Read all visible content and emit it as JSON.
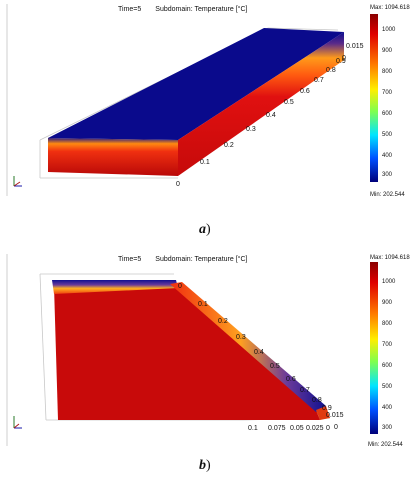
{
  "panels": [
    {
      "time_label": "Time=5",
      "subdomain_label": "Subdomain: Temperature [°C]",
      "legend": {
        "max_label": "Max: 1094.618",
        "min_label": "Min: 202.544",
        "ticks": [
          "1000",
          "900",
          "800",
          "700",
          "600",
          "500",
          "400",
          "300"
        ]
      },
      "axis_ticks": [
        "0",
        "0.1",
        "0.2",
        "0.3",
        "0.4",
        "0.5",
        "0.6",
        "0.7",
        "0.8",
        "0.9",
        "0",
        "0.015"
      ],
      "caption": "a",
      "caption_paren": ")"
    },
    {
      "time_label": "Time=5",
      "subdomain_label": "Subdomain: Temperature [°C]",
      "legend": {
        "max_label": "Max: 1094.618",
        "min_label": "Min: 202.544",
        "ticks": [
          "1000",
          "900",
          "800",
          "700",
          "600",
          "500",
          "400",
          "300"
        ]
      },
      "axis_ticks_diag": [
        "0",
        "0.1",
        "0.2",
        "0.3",
        "0.4",
        "0.5",
        "0.6",
        "0.7",
        "0.8",
        "0.9",
        "0",
        "0.015"
      ],
      "axis_ticks_bottom": [
        "0.1",
        "0.075",
        "0.05",
        "0.025",
        "0"
      ],
      "caption": "b",
      "caption_paren": ")"
    }
  ],
  "colors": {
    "cold": "#0a0a8c",
    "hot": "#cc0b0b",
    "hot_dark": "#a80808"
  }
}
